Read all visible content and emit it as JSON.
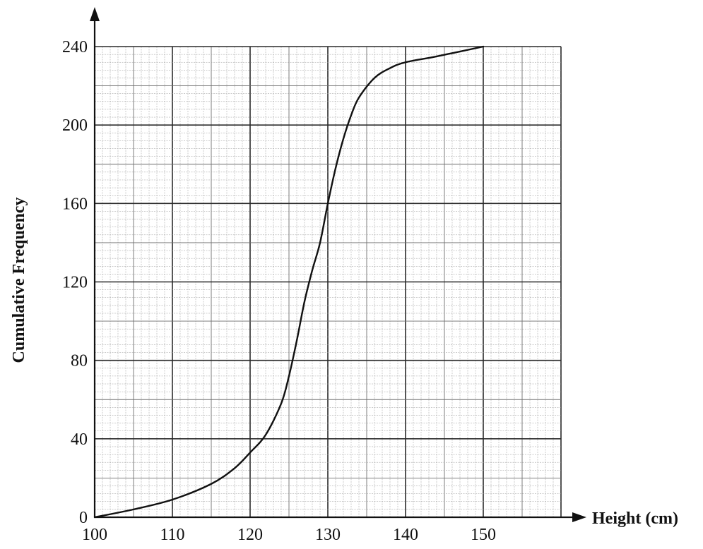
{
  "chart_data": {
    "type": "line",
    "xlabel": "Height (cm)",
    "ylabel": "Cumulative Frequency",
    "xlim": [
      100,
      160
    ],
    "ylim": [
      0,
      240
    ],
    "xticks": [
      "100",
      "110",
      "120",
      "130",
      "140",
      "150"
    ],
    "yticks": [
      "0",
      "40",
      "80",
      "120",
      "160",
      "200",
      "240"
    ],
    "grid": true,
    "series": [
      {
        "points": [
          {
            "x": 100,
            "y": 0
          },
          {
            "x": 105,
            "y": 4
          },
          {
            "x": 110,
            "y": 9
          },
          {
            "x": 115,
            "y": 17
          },
          {
            "x": 118,
            "y": 25
          },
          {
            "x": 120,
            "y": 33
          },
          {
            "x": 122,
            "y": 42
          },
          {
            "x": 124,
            "y": 58
          },
          {
            "x": 125,
            "y": 72
          },
          {
            "x": 126,
            "y": 90
          },
          {
            "x": 127,
            "y": 110
          },
          {
            "x": 128,
            "y": 126
          },
          {
            "x": 129,
            "y": 140
          },
          {
            "x": 130,
            "y": 160
          },
          {
            "x": 131,
            "y": 178
          },
          {
            "x": 132,
            "y": 193
          },
          {
            "x": 133,
            "y": 205
          },
          {
            "x": 134,
            "y": 214
          },
          {
            "x": 136,
            "y": 224
          },
          {
            "x": 138,
            "y": 229
          },
          {
            "x": 140,
            "y": 232
          },
          {
            "x": 144,
            "y": 235
          },
          {
            "x": 150,
            "y": 240
          }
        ]
      }
    ]
  }
}
